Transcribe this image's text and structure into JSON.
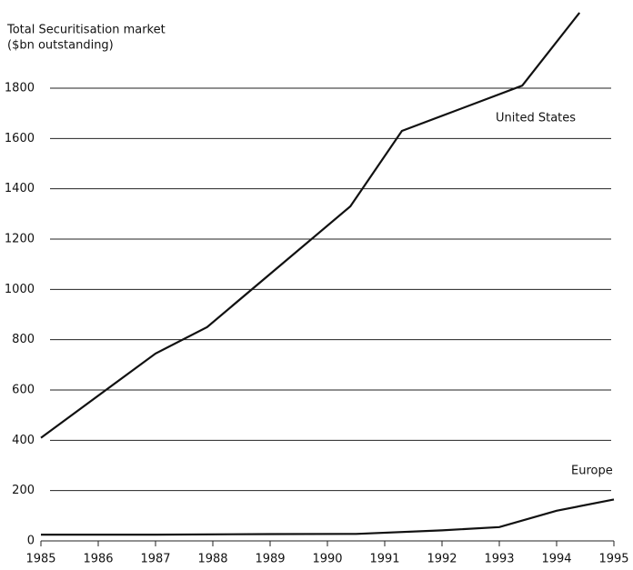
{
  "chart_data": {
    "type": "line",
    "title": "Total Securitisation market",
    "subtitle": "($bn outstanding)",
    "series": [
      {
        "name": "United States",
        "color": "#111111",
        "x": [
          1985,
          1987,
          1987.9,
          1990.4,
          1991.3,
          1993.4,
          1994.4
        ],
        "values": [
          410,
          745,
          850,
          1330,
          1630,
          1810,
          2100
        ]
      },
      {
        "name": "Europe",
        "color": "#111111",
        "x": [
          1985,
          1987,
          1989,
          1990.5,
          1992,
          1993,
          1994,
          1995
        ],
        "values": [
          25,
          25,
          27,
          28,
          42,
          55,
          120,
          165
        ]
      }
    ],
    "xlim": [
      1985,
      1995
    ],
    "xticks": [
      1985,
      1986,
      1987,
      1988,
      1989,
      1990,
      1991,
      1992,
      1993,
      1994,
      1995
    ],
    "ylim": [
      0,
      2100
    ],
    "yticks": [
      0,
      200,
      400,
      600,
      800,
      1000,
      1200,
      1400,
      1600,
      1800
    ],
    "grid": true
  }
}
